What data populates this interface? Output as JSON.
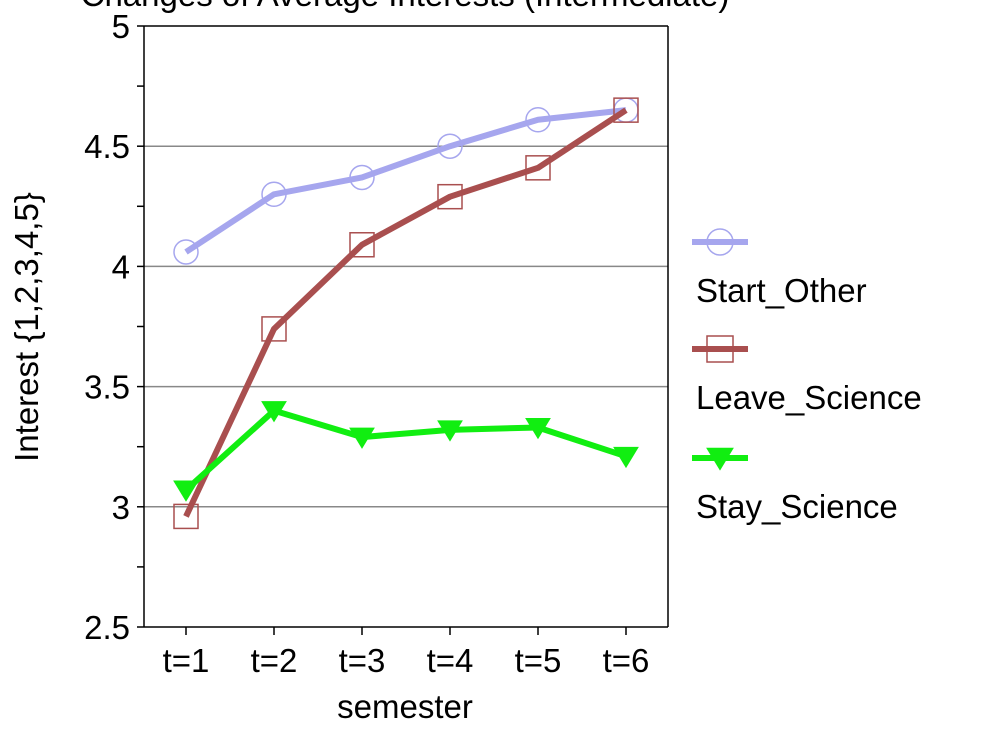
{
  "chart_data": {
    "type": "line",
    "title": "Changes of Average Interests (Intermediate)",
    "xlabel": "semester",
    "ylabel": "Interest {1,2,3,4,5}",
    "categories": [
      "t=1",
      "t=2",
      "t=3",
      "t=4",
      "t=5",
      "t=6"
    ],
    "ylim": [
      2.5,
      5
    ],
    "yticks": [
      "2.5",
      "3",
      "3.5",
      "4",
      "4.5",
      "5"
    ],
    "grid": "horizontal",
    "legend_position": "right",
    "series": [
      {
        "name": "Start_Other",
        "color": "#a6a6ee",
        "marker": "circle",
        "values": [
          4.06,
          4.3,
          4.37,
          4.5,
          4.61,
          4.65
        ]
      },
      {
        "name": "Leave_Science",
        "color": "#a94f4f",
        "marker": "square",
        "values": [
          2.96,
          3.74,
          4.09,
          4.29,
          4.41,
          4.65
        ]
      },
      {
        "name": "Stay_Science",
        "color": "#11ee11",
        "marker": "triangle-down",
        "values": [
          3.07,
          3.4,
          3.29,
          3.32,
          3.33,
          3.21
        ]
      }
    ]
  }
}
